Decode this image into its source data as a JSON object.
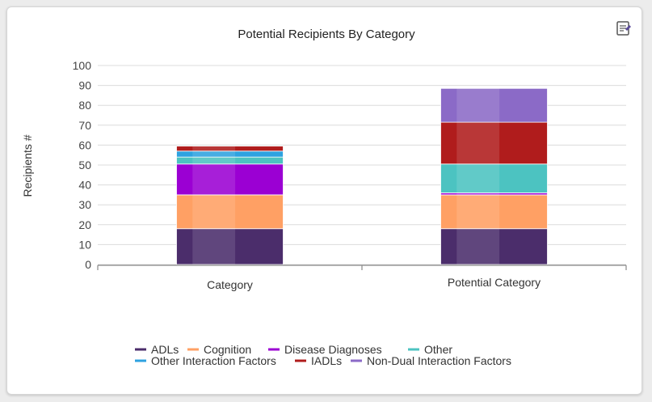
{
  "chart_data": {
    "type": "bar",
    "stacked": true,
    "title": "Potential Recipients By Category",
    "xlabel": "",
    "ylabel": "Recipients #",
    "ylim": [
      0,
      100
    ],
    "yticks": [
      0,
      10,
      20,
      30,
      40,
      50,
      60,
      70,
      80,
      90,
      100
    ],
    "categories": [
      "Category",
      "Potential Category"
    ],
    "series": [
      {
        "name": "ADLs",
        "values": [
          18,
          18
        ],
        "color": "#4b2d6b"
      },
      {
        "name": "Cognition",
        "values": [
          17,
          17
        ],
        "color": "#ffa064"
      },
      {
        "name": "Disease Diagnoses",
        "values": [
          15.5,
          1
        ],
        "color": "#9b00d3"
      },
      {
        "name": "Other",
        "values": [
          3.5,
          14.5
        ],
        "color": "#4cc3c1"
      },
      {
        "name": "Other Interaction Factors",
        "values": [
          3,
          0
        ],
        "color": "#2ea2e0"
      },
      {
        "name": "IADLs",
        "values": [
          2.5,
          21
        ],
        "color": "#b01c1c"
      },
      {
        "name": "Non-Dual Interaction Factors",
        "values": [
          0,
          17
        ],
        "color": "#8b6ac7"
      }
    ],
    "grid": true,
    "legend_position": "bottom"
  },
  "toolbar": {
    "menu_icon": "menu-icon"
  }
}
